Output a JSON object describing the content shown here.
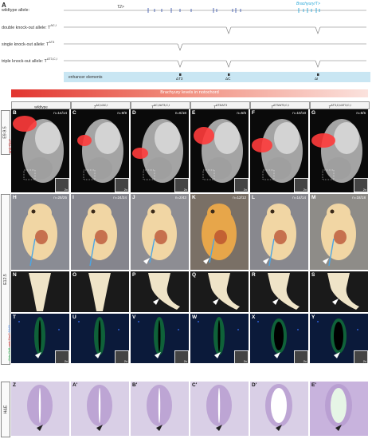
{
  "figure_letter": "A",
  "alleles": [
    {
      "label": "wildtype allele:",
      "sup": ""
    },
    {
      "label": "double knock-out allele: T",
      "sup": "ΔC,I"
    },
    {
      "label": "single knock-out allele: T",
      "sup": "ΔT3"
    },
    {
      "label": "triple knock-out allele: T",
      "sup": "ΔT3,C,I"
    }
  ],
  "gene_labels": {
    "t2": "T2>",
    "brachyury": "Brachyury/T>"
  },
  "enhancer_label": "enhancer elements",
  "enhancer_marks": [
    "ΔT3",
    "ΔC",
    "ΔI"
  ],
  "gradient_label": "Brachyury levels in notochord",
  "columns": [
    {
      "base": "wildtype",
      "sup": ""
    },
    {
      "base": "T",
      "sup": "ΔC,I/ΔC,I"
    },
    {
      "base": "T",
      "sup": "ΔC,I/ΔT3,C,I"
    },
    {
      "base": "T",
      "sup": "ΔT3/ΔT3"
    },
    {
      "base": "T",
      "sup": "ΔT3/ΔT3,C,I"
    },
    {
      "base": "T",
      "sup": "ΔT3,C,I/ΔT3,C,I"
    }
  ],
  "row_tags": {
    "e9": "E9-9.5",
    "e12": "E12.5",
    "he": "H&E"
  },
  "stain_labels": {
    "anti_tbxt": "anti-TbxT",
    "green": "Shh-ChR",
    "red": "anti-TbxT",
    "blue": "DAPI"
  },
  "zoom_label": "2x",
  "rows": {
    "b": [
      {
        "letter": "B",
        "count": "n=14/14"
      },
      {
        "letter": "C",
        "count": "n=9/9"
      },
      {
        "letter": "D",
        "count": "n=6/18"
      },
      {
        "letter": "E",
        "count": "n=5/5"
      },
      {
        "letter": "F",
        "count": "n=10/10"
      },
      {
        "letter": "G",
        "count": "n=5/5"
      }
    ],
    "h": [
      {
        "letter": "H",
        "count": "n=25/25"
      },
      {
        "letter": "I",
        "count": "n=24/24"
      },
      {
        "letter": "J",
        "count": "n=2/43"
      },
      {
        "letter": "K",
        "count": "n=12/12"
      },
      {
        "letter": "L",
        "count": "n=14/14"
      },
      {
        "letter": "M",
        "count": "n=18/18"
      }
    ],
    "n": [
      {
        "letter": "N"
      },
      {
        "letter": "O"
      },
      {
        "letter": "P"
      },
      {
        "letter": "Q"
      },
      {
        "letter": "R"
      },
      {
        "letter": "S"
      }
    ],
    "t": [
      {
        "letter": "T"
      },
      {
        "letter": "U"
      },
      {
        "letter": "V"
      },
      {
        "letter": "W"
      },
      {
        "letter": "X"
      },
      {
        "letter": "Y"
      }
    ],
    "z": [
      {
        "letter": "Z"
      },
      {
        "letter": "A'"
      },
      {
        "letter": "B'"
      },
      {
        "letter": "C'"
      },
      {
        "letter": "D'"
      },
      {
        "letter": "E'"
      }
    ]
  }
}
